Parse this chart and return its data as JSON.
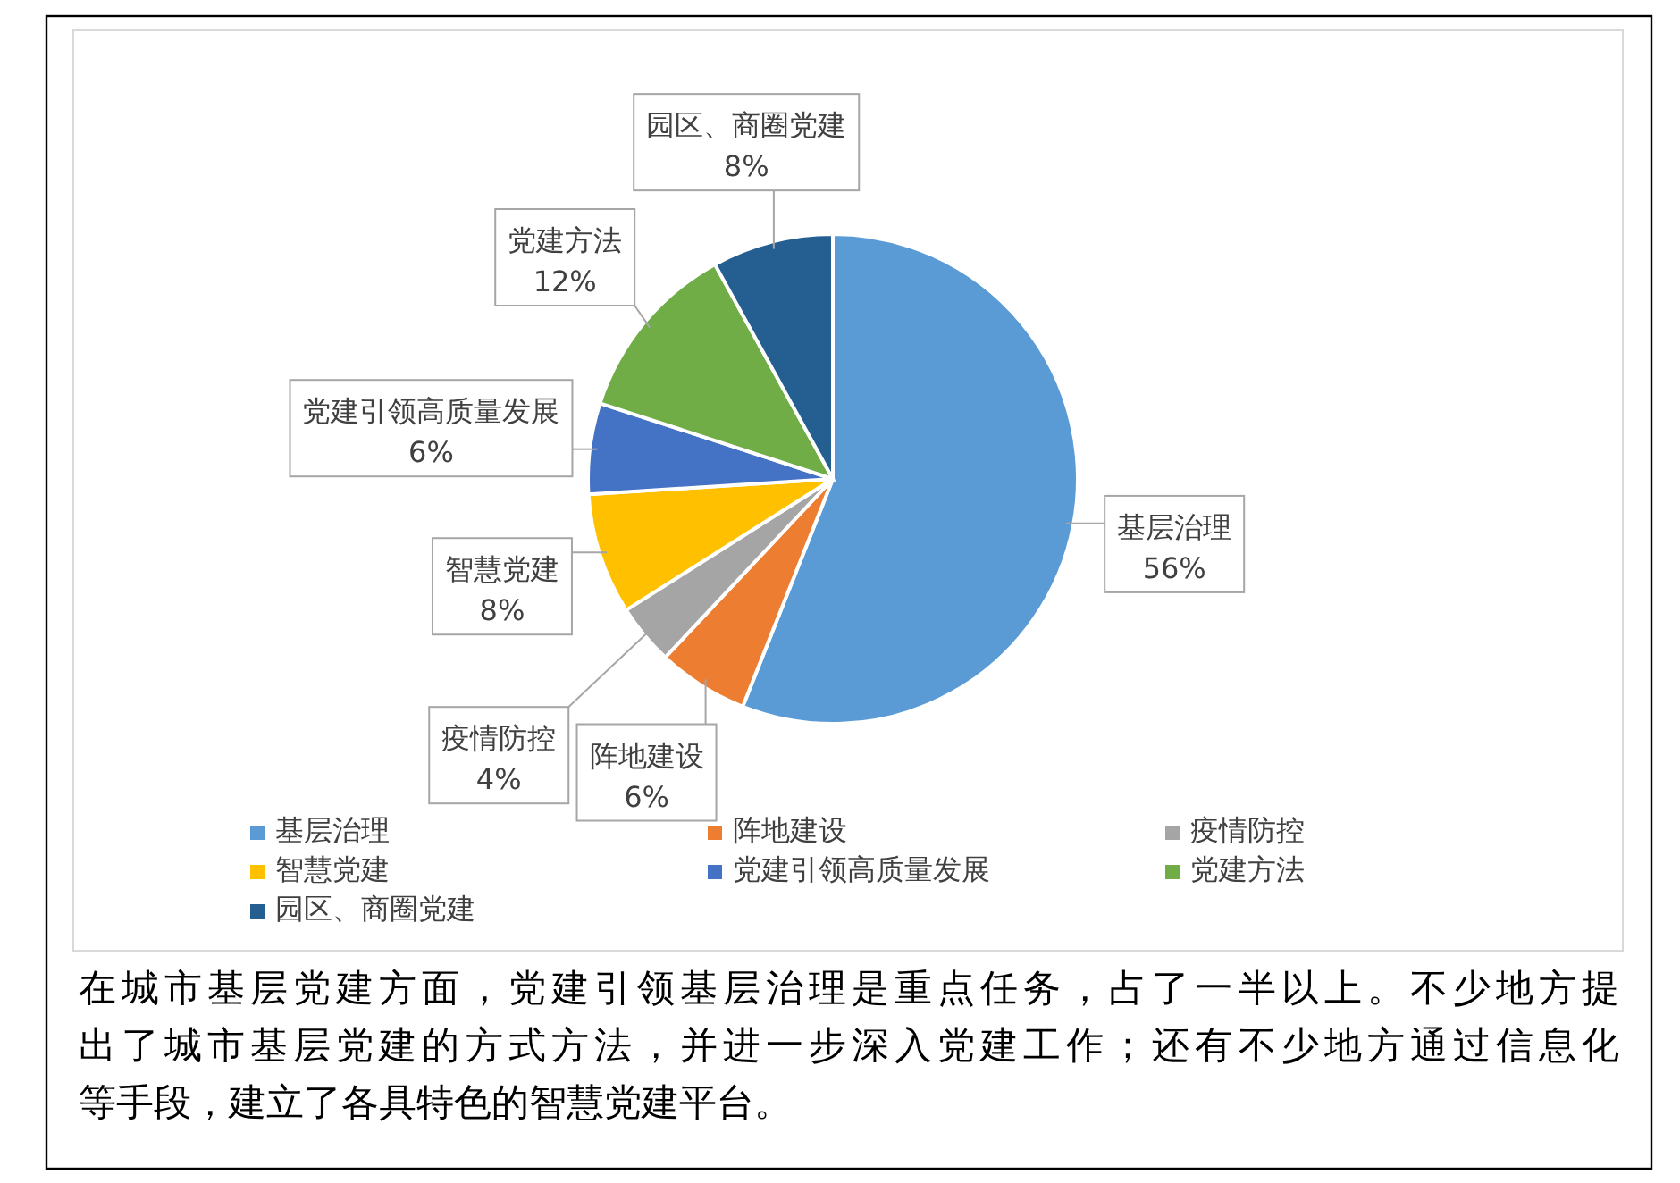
{
  "chart_data": {
    "type": "pie",
    "categories": [
      "基层治理",
      "阵地建设",
      "疫情防控",
      "智慧党建",
      "党建引领高质量发展",
      "党建方法",
      "园区、商圈党建"
    ],
    "values": [
      56,
      6,
      4,
      8,
      6,
      12,
      8
    ],
    "colors": [
      "#5b9bd5",
      "#ed7d31",
      "#a5a5a5",
      "#ffc000",
      "#4472c4",
      "#70ad47",
      "#255e91"
    ],
    "value_labels": [
      "56%",
      "6%",
      "4%",
      "8%",
      "6%",
      "12%",
      "8%"
    ],
    "legend": "bottom",
    "annotations": [
      "在城市基层党建方面，党建引领基层治理是重点任务，占了一半以上。不少地方提出了城市基层党建的方式方法，并进一步深入党建工作；还有不少地方通过信息化等手段，建立了各具特色的智慧党建平台。"
    ]
  }
}
